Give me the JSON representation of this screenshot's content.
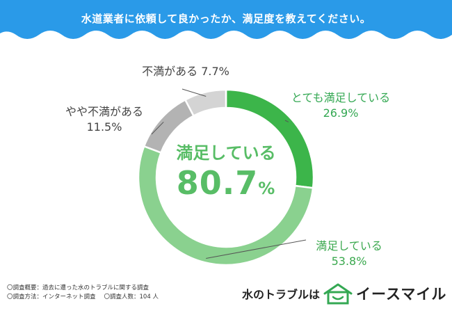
{
  "header": {
    "title": "水道業者に依頼して良かったか、満足度を教えてください。",
    "background_color": "#2a9ae8"
  },
  "chart_data": {
    "type": "pie",
    "donut": true,
    "title": "水道業者に依頼して良かったか、満足度を教えてください。",
    "categories": [
      "とても満足している",
      "満足している",
      "やや不満がある",
      "不満がある"
    ],
    "values": [
      26.9,
      53.8,
      11.5,
      7.7
    ],
    "unit": "%",
    "colors": [
      "#3cb54a",
      "#8ad18f",
      "#b3b3b3",
      "#d4d4d4"
    ],
    "center_label": "満足している",
    "center_value": "80.7",
    "center_unit": "%"
  },
  "labels": [
    {
      "name": "とても満足している",
      "value": "26.9%"
    },
    {
      "name": "満足している",
      "value": "53.8%"
    },
    {
      "name": "やや不満がある",
      "value": "11.5%"
    },
    {
      "name": "不満がある",
      "value": "7.7%"
    }
  ],
  "footer": {
    "survey_overview": "〇調査概要：過去に遭った水のトラブルに関する調査",
    "survey_method": "〇調査方法：インターネット調査",
    "respondents": "〇調査人数：104 人"
  },
  "brand": {
    "tagline": "水のトラブルは",
    "logo_icon": "house-smile-icon",
    "name": "イースマイル"
  }
}
